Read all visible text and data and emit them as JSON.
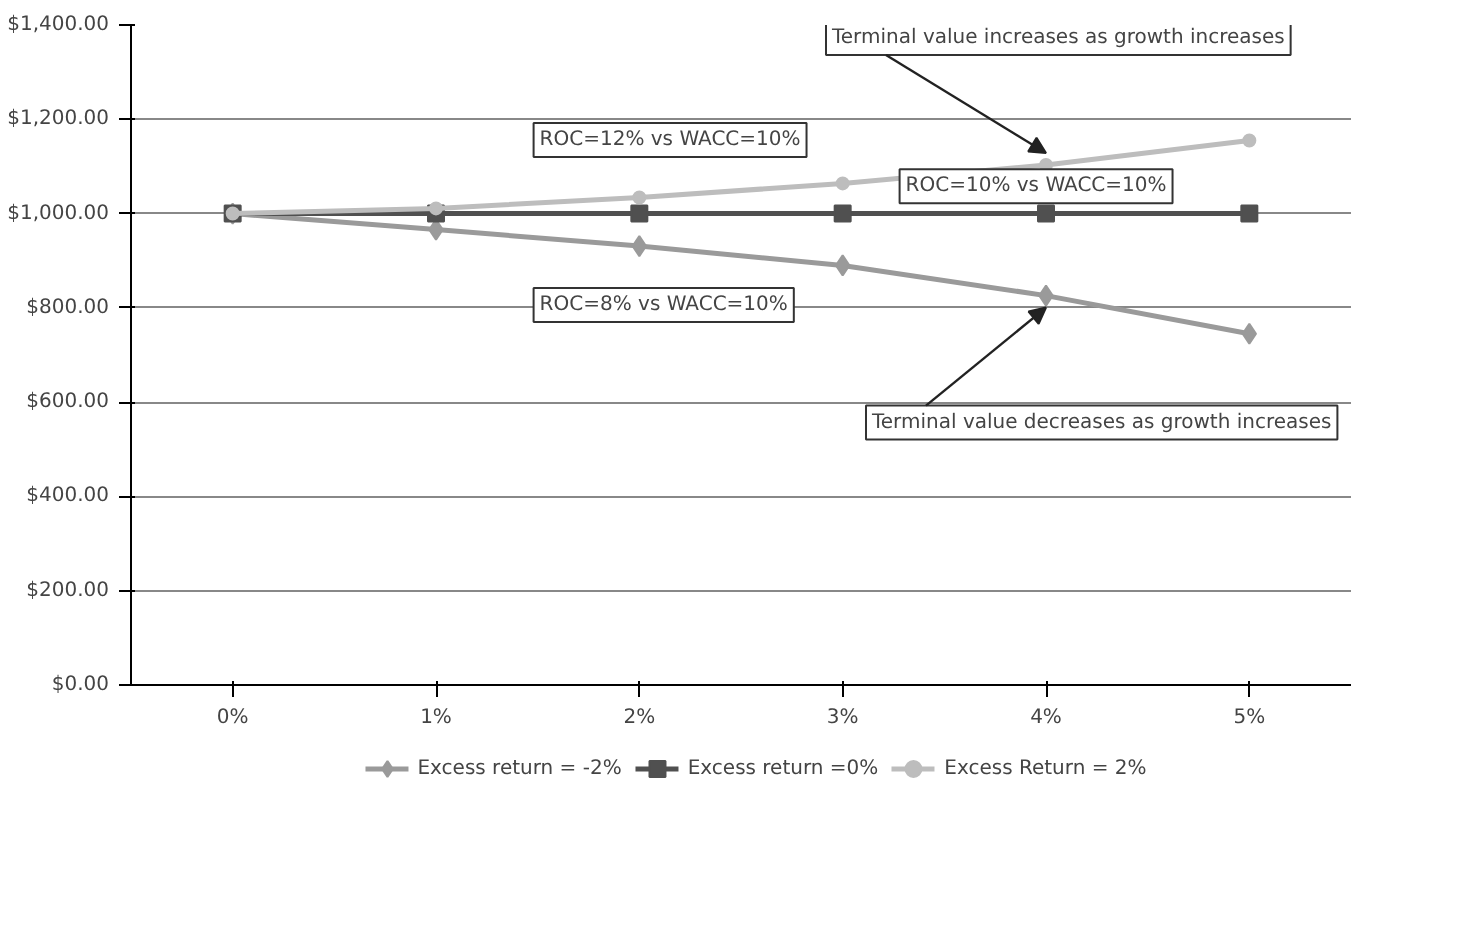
{
  "chart_data": {
    "type": "line",
    "categories": [
      "0%",
      "1%",
      "2%",
      "3%",
      "4%",
      "5%"
    ],
    "series": [
      {
        "name": "Excess return = -2%",
        "color": "#9a9a9a",
        "marker": "diamond",
        "values": [
          1000,
          966,
          931,
          890,
          826,
          745
        ]
      },
      {
        "name": "Excess return =0%",
        "color": "#505050",
        "marker": "square",
        "values": [
          1000,
          1000,
          1000,
          1000,
          1000,
          1000
        ]
      },
      {
        "name": "Excess Return = 2%",
        "color": "#bdbdbd",
        "marker": "circle",
        "values": [
          1000,
          1011,
          1034,
          1064,
          1103,
          1155
        ]
      }
    ],
    "ylim": [
      0,
      1400
    ],
    "yticks": [
      {
        "value": 0,
        "label": "$0.00"
      },
      {
        "value": 200,
        "label": "$200.00"
      },
      {
        "value": 400,
        "label": "$400.00"
      },
      {
        "value": 600,
        "label": "$600.00"
      },
      {
        "value": 800,
        "label": "$800.00"
      },
      {
        "value": 1000,
        "label": "$1,000.00"
      },
      {
        "value": 1200,
        "label": "$1,200.00"
      },
      {
        "value": 1400,
        "label": "$1,400.00"
      }
    ],
    "grid": "y",
    "legend": "bottom",
    "annotations": [
      {
        "text": "Terminal value increases as growth increases",
        "x": "4%",
        "y": 1103
      },
      {
        "text": "Terminal value decreases as growth increases",
        "x": "4%",
        "y": 826
      },
      "ROC=12% vs WACC=10%",
      "ROC=10% vs WACC=10%",
      "ROC=8% vs WACC=10%"
    ]
  }
}
